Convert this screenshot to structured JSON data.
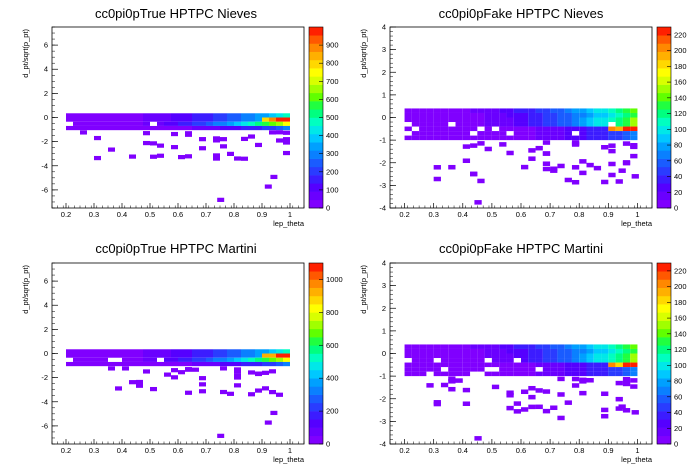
{
  "chart_data": [
    {
      "type": "heatmap",
      "title": "cc0pi0pTrue HPTPC Nieves",
      "xlabel": "lep_theta",
      "ylabel": "d_pt/sqrt(p_pt)",
      "xlim": [
        0.15,
        1.05
      ],
      "ylim": [
        -7.5,
        7.5
      ],
      "xticks": [
        "0.2",
        "0.3",
        "0.4",
        "0.5",
        "0.6",
        "0.7",
        "0.8",
        "0.9",
        "1"
      ],
      "yticks": [
        "-6",
        "-4",
        "-2",
        "0",
        "2",
        "4",
        "6"
      ],
      "zlim": [
        0,
        1000
      ],
      "zticks": [
        "0",
        "100",
        "200",
        "300",
        "400",
        "500",
        "600",
        "700",
        "800",
        "900"
      ],
      "grid": false,
      "palette": [
        "#8000ff",
        "#6a00ff",
        "#5500ff",
        "#3c1cff",
        "#2a3cff",
        "#1a5cff",
        "#0a80ff",
        "#00a0ff",
        "#00c8ff",
        "#00e8e8",
        "#00ffc0",
        "#00ff80",
        "#20ff40",
        "#60ff00",
        "#a0ff00",
        "#d8ff00",
        "#ffff00",
        "#ffd800",
        "#ffb000",
        "#ff8800",
        "#ff5800",
        "#ff2000"
      ],
      "peak_x": 0.99,
      "peak_y": -0.4
    },
    {
      "type": "heatmap",
      "title": "cc0pi0pFake HPTPC Nieves",
      "xlabel": "lep_theta",
      "ylabel": "d_pt/sqrt(p_pt)",
      "xlim": [
        0.15,
        1.05
      ],
      "ylim": [
        -4,
        4
      ],
      "xticks": [
        "0.2",
        "0.3",
        "0.4",
        "0.5",
        "0.6",
        "0.7",
        "0.8",
        "0.9",
        "1"
      ],
      "yticks": [
        "-4",
        "-3",
        "-2",
        "-1",
        "0",
        "1",
        "2",
        "3",
        "4"
      ],
      "zlim": [
        0,
        230
      ],
      "zticks": [
        "0",
        "20",
        "40",
        "60",
        "80",
        "100",
        "120",
        "140",
        "160",
        "180",
        "200",
        "220"
      ],
      "grid": false,
      "palette": [
        "#8000ff",
        "#6a00ff",
        "#5500ff",
        "#3c1cff",
        "#2a3cff",
        "#1a5cff",
        "#0a80ff",
        "#00a0ff",
        "#00c8ff",
        "#00e8e8",
        "#00ffc0",
        "#00ff80",
        "#20ff40",
        "#60ff00",
        "#a0ff00",
        "#d8ff00",
        "#ffff00",
        "#ffd800",
        "#ffb000",
        "#ff8800",
        "#ff5800",
        "#ff2000"
      ],
      "peak_x": 0.98,
      "peak_y": -0.55
    },
    {
      "type": "heatmap",
      "title": "cc0pi0pTrue HPTPC Martini",
      "xlabel": "lep_theta",
      "ylabel": "d_pt/sqrt(p_pt)",
      "xlim": [
        0.15,
        1.05
      ],
      "ylim": [
        -7.5,
        7.5
      ],
      "xticks": [
        "0.2",
        "0.3",
        "0.4",
        "0.5",
        "0.6",
        "0.7",
        "0.8",
        "0.9",
        "1"
      ],
      "yticks": [
        "-6",
        "-4",
        "-2",
        "0",
        "2",
        "4",
        "6"
      ],
      "zlim": [
        0,
        1100
      ],
      "zticks": [
        "0",
        "200",
        "400",
        "600",
        "800",
        "1000"
      ],
      "grid": false,
      "palette": [
        "#8000ff",
        "#6a00ff",
        "#5500ff",
        "#3c1cff",
        "#2a3cff",
        "#1a5cff",
        "#0a80ff",
        "#00a0ff",
        "#00c8ff",
        "#00e8e8",
        "#00ffc0",
        "#00ff80",
        "#20ff40",
        "#60ff00",
        "#a0ff00",
        "#d8ff00",
        "#ffff00",
        "#ffd800",
        "#ffb000",
        "#ff8800",
        "#ff5800",
        "#ff2000"
      ],
      "peak_x": 0.99,
      "peak_y": -0.4
    },
    {
      "type": "heatmap",
      "title": "cc0pi0pFake HPTPC Martini",
      "xlabel": "lep_theta",
      "ylabel": "d_pt/sqrt(p_pt)",
      "xlim": [
        0.15,
        1.05
      ],
      "ylim": [
        -4,
        4
      ],
      "xticks": [
        "0.2",
        "0.3",
        "0.4",
        "0.5",
        "0.6",
        "0.7",
        "0.8",
        "0.9",
        "1"
      ],
      "yticks": [
        "-4",
        "-3",
        "-2",
        "-1",
        "0",
        "1",
        "2",
        "3",
        "4"
      ],
      "zlim": [
        0,
        230
      ],
      "zticks": [
        "0",
        "20",
        "40",
        "60",
        "80",
        "100",
        "120",
        "140",
        "160",
        "180",
        "200",
        "220"
      ],
      "grid": false,
      "palette": [
        "#8000ff",
        "#6a00ff",
        "#5500ff",
        "#3c1cff",
        "#2a3cff",
        "#1a5cff",
        "#0a80ff",
        "#00a0ff",
        "#00c8ff",
        "#00e8e8",
        "#00ffc0",
        "#00ff80",
        "#20ff40",
        "#60ff00",
        "#a0ff00",
        "#d8ff00",
        "#ffff00",
        "#ffd800",
        "#ffb000",
        "#ff8800",
        "#ff5800",
        "#ff2000"
      ],
      "peak_x": 0.98,
      "peak_y": -0.55
    }
  ]
}
